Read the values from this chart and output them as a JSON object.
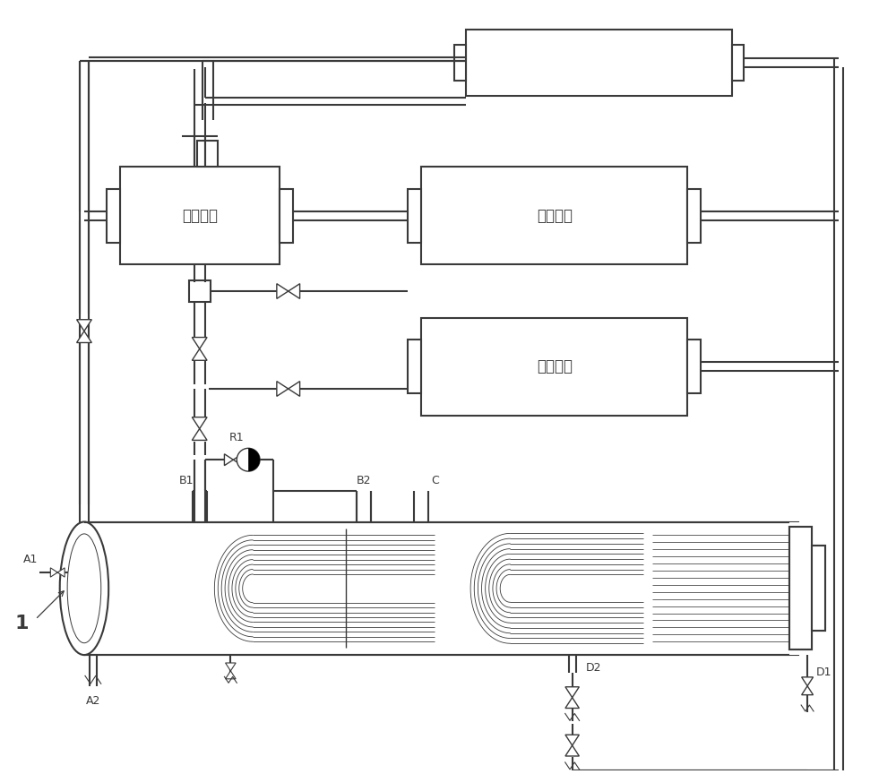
{
  "bg_color": "#ffffff",
  "line_color": "#3a3a3a",
  "box1_label": "余热锅炉",
  "box2_label": "燃气轮机",
  "box3_label": "启动锅炉",
  "label_fontsize": 12,
  "small_fontsize": 9
}
